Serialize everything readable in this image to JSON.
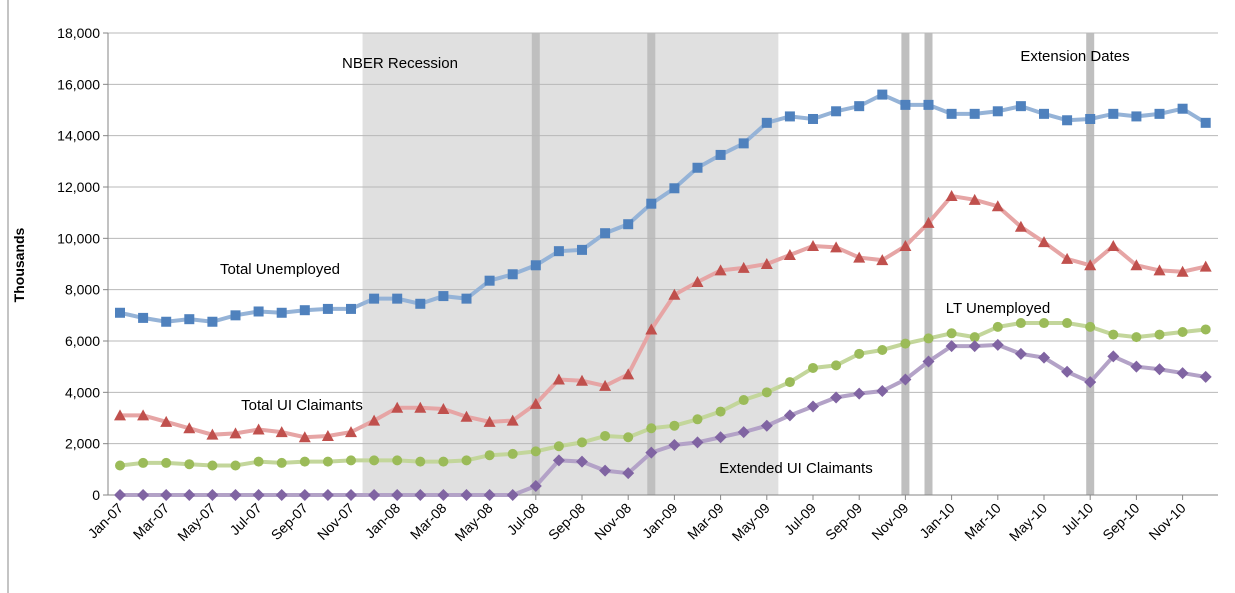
{
  "chart_data": {
    "type": "line",
    "y_label": "Thousands",
    "categories": [
      "Jan-07",
      null,
      "Mar-07",
      null,
      "May-07",
      null,
      "Jul-07",
      null,
      "Sep-07",
      null,
      "Nov-07",
      null,
      "Jan-08",
      null,
      "Mar-08",
      null,
      "May-08",
      null,
      "Jul-08",
      null,
      "Sep-08",
      null,
      "Nov-08",
      null,
      "Jan-09",
      null,
      "Mar-09",
      null,
      "May-09",
      null,
      "Jul-09",
      null,
      "Sep-09",
      null,
      "Nov-09",
      null,
      "Jan-10",
      null,
      "Mar-10",
      null,
      "May-10",
      null,
      "Jul-10",
      null,
      "Sep-10",
      null,
      "Nov-10",
      null
    ],
    "series": [
      {
        "name": "Total Unemployed",
        "color": "#4f81bd",
        "marker": "square",
        "values": [
          7100,
          6900,
          6750,
          6850,
          6750,
          7000,
          7150,
          7100,
          7200,
          7250,
          7250,
          7650,
          7650,
          7450,
          7750,
          7650,
          8350,
          8600,
          8950,
          9500,
          9550,
          10200,
          10550,
          11350,
          11950,
          12750,
          13250,
          13700,
          14500,
          14750,
          14650,
          14950,
          15150,
          15600,
          15200,
          15200,
          14850,
          14850,
          14950,
          15150,
          14850,
          14600,
          14650,
          14850,
          14750,
          14850,
          15050,
          14500
        ]
      },
      {
        "name": "Total UI Claimants",
        "color": "#c0504d",
        "marker": "triangle",
        "values": [
          3100,
          3100,
          2850,
          2600,
          2350,
          2400,
          2550,
          2450,
          2250,
          2300,
          2450,
          2900,
          3400,
          3400,
          3350,
          3050,
          2850,
          2900,
          3550,
          4500,
          4450,
          4250,
          4700,
          6450,
          7800,
          8300,
          8750,
          8850,
          9000,
          9350,
          9700,
          9650,
          9250,
          9150,
          9700,
          10600,
          11650,
          11500,
          11250,
          10450,
          9850,
          9200,
          8950,
          9700,
          8950,
          8750,
          8700,
          8900
        ]
      },
      {
        "name": "LT Unemployed",
        "color": "#9bbb59",
        "marker": "circle",
        "values": [
          1150,
          1250,
          1250,
          1200,
          1150,
          1150,
          1300,
          1250,
          1300,
          1300,
          1350,
          1350,
          1350,
          1300,
          1300,
          1350,
          1550,
          1600,
          1700,
          1900,
          2050,
          2300,
          2250,
          2600,
          2700,
          2950,
          3250,
          3700,
          4000,
          4400,
          4950,
          5050,
          5500,
          5650,
          5900,
          6100,
          6300,
          6150,
          6550,
          6700,
          6700,
          6700,
          6550,
          6250,
          6150,
          6250,
          6350,
          6450
        ]
      },
      {
        "name": "Extended UI Claimants",
        "color": "#8064a2",
        "marker": "diamond",
        "values": [
          0,
          0,
          0,
          0,
          0,
          0,
          0,
          0,
          0,
          0,
          0,
          0,
          0,
          0,
          0,
          0,
          0,
          0,
          350,
          1350,
          1300,
          950,
          850,
          1650,
          1950,
          2050,
          2250,
          2450,
          2700,
          3100,
          3450,
          3800,
          3950,
          4050,
          4500,
          5200,
          5800,
          5800,
          5850,
          5500,
          5350,
          4800,
          4400,
          5400,
          5000,
          4900,
          4750,
          4600
        ]
      }
    ],
    "recession": {
      "label": "NBER Recession",
      "start": 11,
      "end": 29
    },
    "extension_dates": {
      "label": "Extension Dates",
      "months": [
        18,
        23,
        34,
        35,
        42
      ]
    },
    "ylim": [
      0,
      18000
    ],
    "yticks": [
      0,
      {
        "value": 2000,
        "label": "2,000"
      },
      {
        "value": 4000,
        "label": "4,000"
      },
      {
        "value": 6000,
        "label": "6,000"
      },
      {
        "value": 8000,
        "label": "8,000"
      },
      {
        "value": 10000,
        "label": "10,000"
      },
      {
        "value": 12000,
        "label": "12,000"
      },
      {
        "value": 14000,
        "label": "14,000"
      },
      {
        "value": 16000,
        "label": "16,000"
      },
      {
        "value": 18000,
        "label": "18,000"
      }
    ],
    "grid": true
  }
}
